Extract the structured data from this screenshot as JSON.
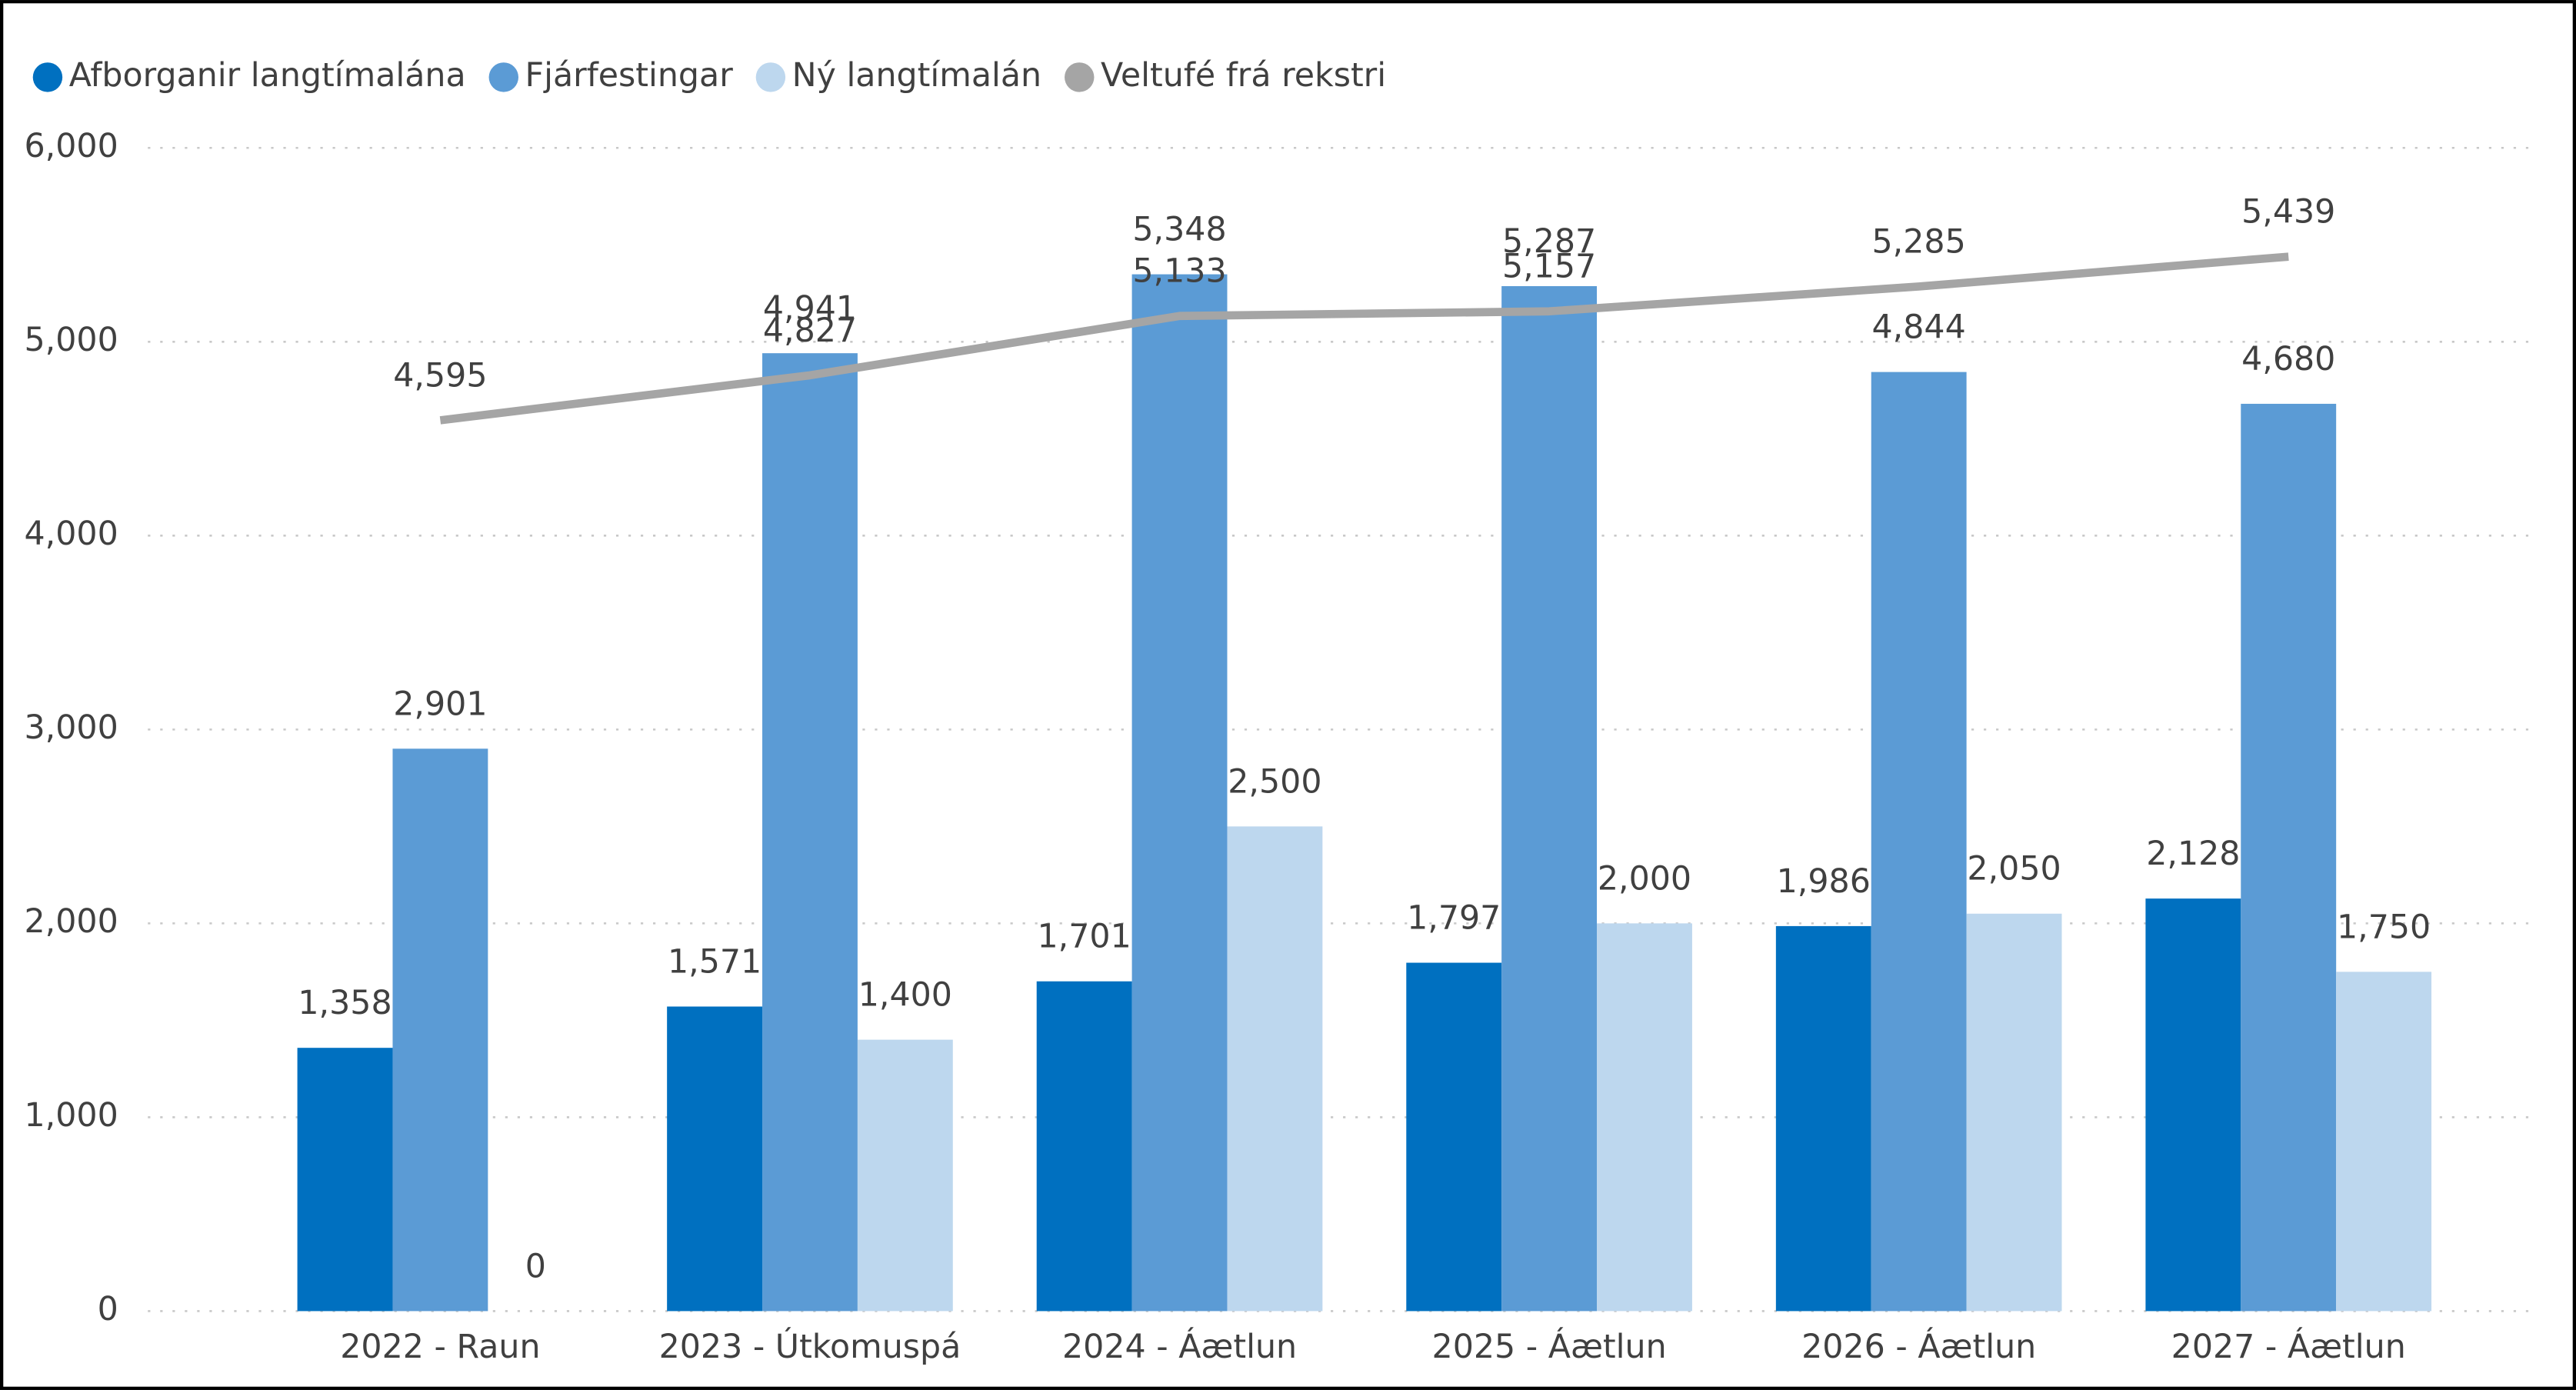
{
  "chart_data": {
    "type": "bar_line",
    "categories": [
      "2022 - Raun",
      "2023 - Útkomuspá",
      "2024 - Áætlun",
      "2025 - Áætlun",
      "2026 - Áætlun",
      "2027 - Áætlun"
    ],
    "series": [
      {
        "name": "Afborganir langtímalána",
        "color": "#0070c0",
        "type": "bar",
        "values": [
          1358,
          1571,
          1701,
          1797,
          1986,
          2128
        ],
        "value_labels": [
          "1,358",
          "1,571",
          "1,701",
          "1,797",
          "1,986",
          "2,128"
        ]
      },
      {
        "name": "Fjárfestingar",
        "color": "#5b9bd5",
        "type": "bar",
        "values": [
          2901,
          4941,
          5348,
          5287,
          4844,
          4680
        ],
        "value_labels": [
          "2,901",
          "4,941",
          "5,348",
          "5,287",
          "4,844",
          "4,680"
        ]
      },
      {
        "name": "Ný langtímalán",
        "color": "#bdd7ee",
        "type": "bar",
        "values": [
          0,
          1400,
          2500,
          2000,
          2050,
          1750
        ],
        "value_labels": [
          "0",
          "1,400",
          "2,500",
          "2,000",
          "2,050",
          "1,750"
        ]
      },
      {
        "name": "Veltufé frá rekstri",
        "color": "#a5a5a5",
        "type": "line",
        "values": [
          4595,
          4827,
          5133,
          5157,
          5285,
          5439
        ],
        "value_labels": [
          "4,595",
          "4,827",
          "5,133",
          "5,157",
          "5,285",
          "5,439"
        ]
      }
    ],
    "ylim": [
      0,
      6000
    ],
    "yticks": [
      0,
      {
        "value": 1000,
        "label": "1,000"
      },
      {
        "value": 2000,
        "label": "2,000"
      },
      {
        "value": 3000,
        "label": "3,000"
      },
      {
        "value": 4000,
        "label": "4,000"
      },
      {
        "value": 5000,
        "label": "5,000"
      },
      {
        "value": 6000,
        "label": "6,000"
      }
    ],
    "grid": true,
    "legend": "top-left"
  }
}
